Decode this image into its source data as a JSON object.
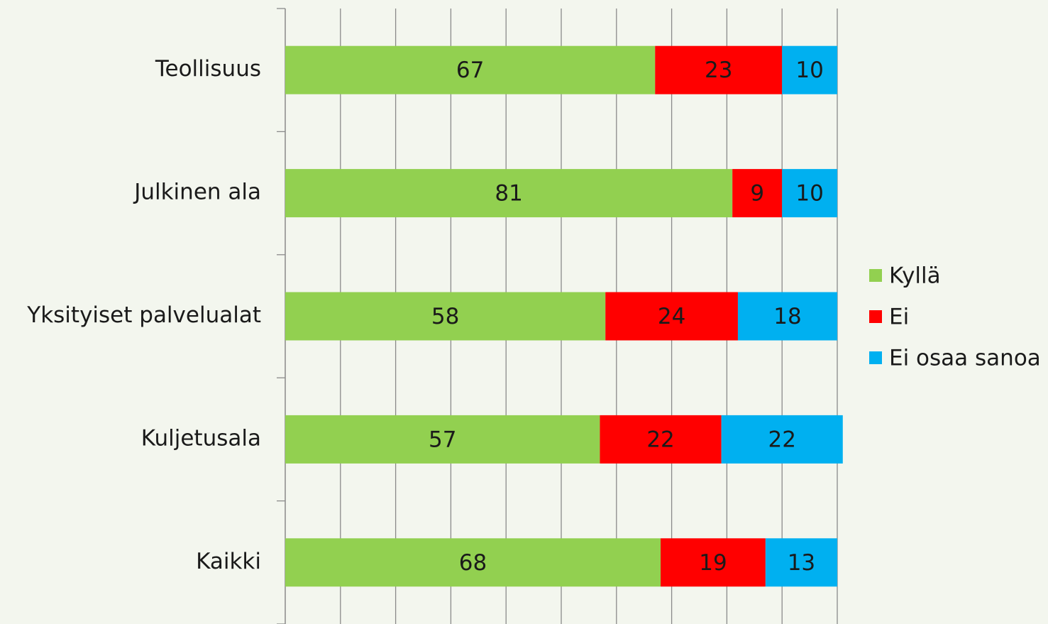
{
  "chart_data": {
    "type": "stacked-bar-horizontal",
    "categories": [
      "Teollisuus",
      "Julkinen ala",
      "Yksityiset palvelualat",
      "Kuljetusala",
      "Kaikki"
    ],
    "series": [
      {
        "name": "Kyllä",
        "color": "#92d050",
        "values": [
          67,
          81,
          58,
          57,
          68
        ]
      },
      {
        "name": "Ei",
        "color": "#ff0000",
        "values": [
          23,
          9,
          24,
          22,
          19
        ]
      },
      {
        "name": "Ei osaa sanoa",
        "color": "#00b0f0",
        "values": [
          10,
          10,
          18,
          22,
          13
        ]
      }
    ],
    "xlim": [
      0,
      100
    ],
    "xticks": [
      0,
      10,
      20,
      30,
      40,
      50,
      60,
      70,
      80,
      90,
      100
    ],
    "grid": true
  }
}
